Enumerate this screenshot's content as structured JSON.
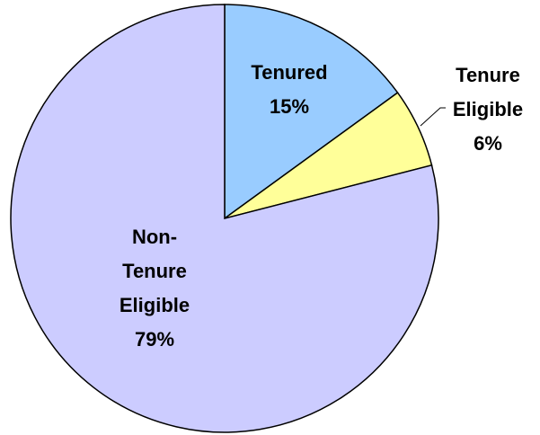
{
  "chart_data": {
    "type": "pie",
    "categories": [
      "Tenured",
      "Tenure Eligible",
      "Non-Tenure Eligible"
    ],
    "values": [
      15,
      6,
      79
    ],
    "value_labels": [
      "15%",
      "6%",
      "79%"
    ],
    "colors": [
      "#99ccff",
      "#ffff99",
      "#ccccff"
    ]
  }
}
